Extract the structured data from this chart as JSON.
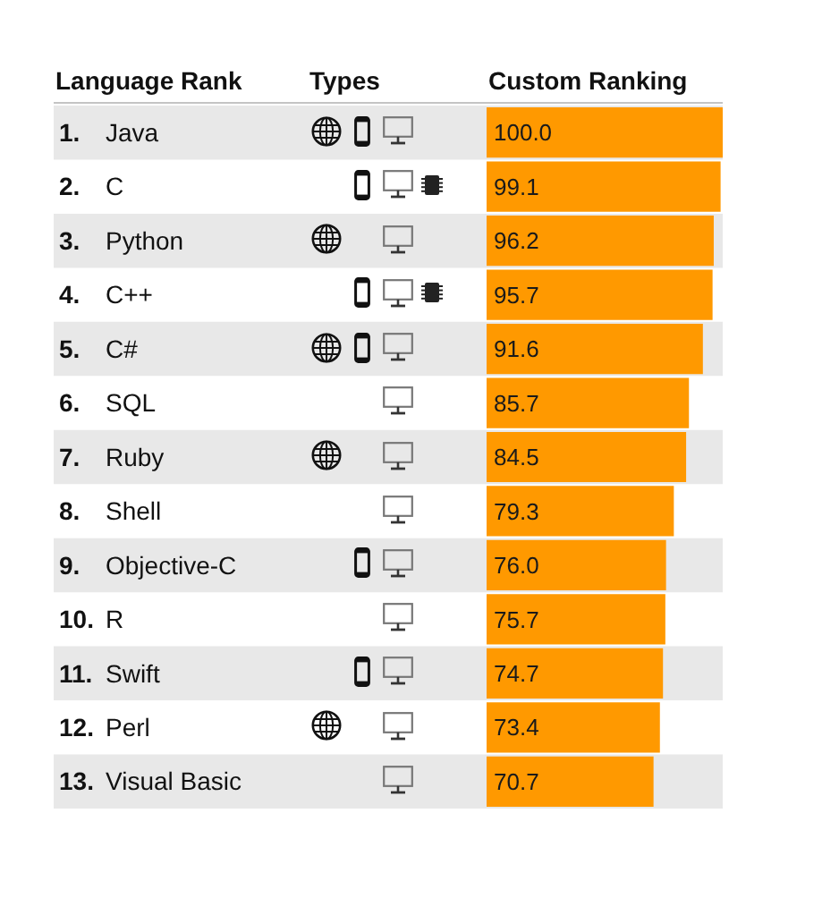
{
  "chart_data": {
    "type": "bar",
    "orientation": "horizontal",
    "ylabel": "Language Rank",
    "xlabel": "Custom Ranking",
    "annotations": [
      "Types"
    ],
    "categories": [
      "1. Java",
      "2. C",
      "3. Python",
      "4. C++",
      "5. C#",
      "6. SQL",
      "7. Ruby",
      "8. Shell",
      "9. Objective-C",
      "10. R",
      "11. Swift",
      "12. Perl",
      "13. Visual Basic"
    ],
    "values": [
      100.0,
      99.1,
      96.2,
      95.7,
      91.6,
      85.7,
      84.5,
      79.3,
      76.0,
      75.7,
      74.7,
      73.4,
      70.7
    ],
    "value_labels": [
      "100.0",
      "99.1",
      "96.2",
      "95.7",
      "91.6",
      "85.7",
      "84.5",
      "79.3",
      "76.0",
      "75.7",
      "74.7",
      "73.4",
      "70.7"
    ],
    "color": "#ff9900",
    "xlim": [
      0,
      100
    ],
    "tick_labels": "y"
  }
}
